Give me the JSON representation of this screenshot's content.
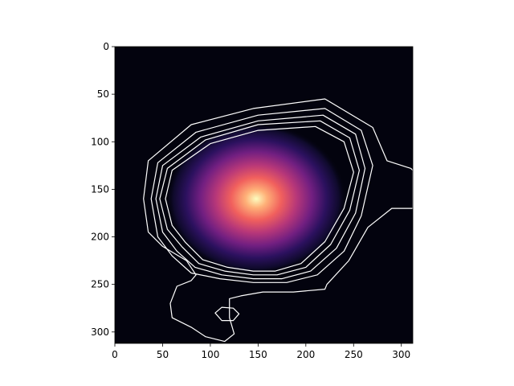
{
  "chart_data": {
    "type": "heatmap",
    "title": "",
    "xlabel": "",
    "ylabel": "",
    "xlim": [
      0,
      312
    ],
    "ylim": [
      312,
      0
    ],
    "colormap": "magma",
    "peak": {
      "x": 148,
      "y": 160,
      "value": 1.0
    },
    "x_ticks": [
      "0",
      "50",
      "100",
      "150",
      "200",
      "250",
      "300"
    ],
    "y_ticks": [
      "0",
      "50",
      "100",
      "150",
      "200",
      "250",
      "300"
    ],
    "contour_color": "#ffffff",
    "contours": [
      [
        [
          30,
          160
        ],
        [
          35,
          120
        ],
        [
          80,
          82
        ],
        [
          145,
          65
        ],
        [
          220,
          55
        ],
        [
          270,
          85
        ],
        [
          285,
          120
        ],
        [
          310,
          128
        ],
        [
          312,
          130
        ],
        [
          312,
          170
        ],
        [
          290,
          170
        ],
        [
          265,
          190
        ],
        [
          245,
          225
        ],
        [
          222,
          250
        ],
        [
          220,
          255
        ],
        [
          187,
          258
        ],
        [
          175,
          258
        ],
        [
          155,
          258
        ],
        [
          132,
          262
        ],
        [
          120,
          265
        ],
        [
          120,
          285
        ],
        [
          125,
          302
        ],
        [
          115,
          310
        ],
        [
          95,
          305
        ],
        [
          80,
          295
        ],
        [
          60,
          285
        ],
        [
          58,
          270
        ],
        [
          65,
          252
        ],
        [
          80,
          246
        ],
        [
          85,
          240
        ],
        [
          75,
          225
        ],
        [
          50,
          210
        ],
        [
          35,
          195
        ]
      ],
      [
        [
          38,
          160
        ],
        [
          45,
          122
        ],
        [
          85,
          90
        ],
        [
          150,
          72
        ],
        [
          220,
          65
        ],
        [
          258,
          88
        ],
        [
          270,
          125
        ],
        [
          258,
          178
        ],
        [
          240,
          215
        ],
        [
          212,
          240
        ],
        [
          180,
          248
        ],
        [
          145,
          248
        ],
        [
          110,
          244
        ],
        [
          80,
          238
        ],
        [
          60,
          220
        ],
        [
          45,
          200
        ]
      ],
      [
        [
          43,
          160
        ],
        [
          50,
          125
        ],
        [
          90,
          95
        ],
        [
          150,
          78
        ],
        [
          218,
          72
        ],
        [
          252,
          92
        ],
        [
          262,
          128
        ],
        [
          252,
          175
        ],
        [
          232,
          212
        ],
        [
          205,
          236
        ],
        [
          175,
          244
        ],
        [
          145,
          244
        ],
        [
          112,
          240
        ],
        [
          84,
          232
        ],
        [
          65,
          215
        ],
        [
          50,
          195
        ]
      ],
      [
        [
          47,
          160
        ],
        [
          55,
          128
        ],
        [
          95,
          98
        ],
        [
          150,
          82
        ],
        [
          215,
          78
        ],
        [
          246,
          96
        ],
        [
          256,
          130
        ],
        [
          246,
          172
        ],
        [
          226,
          208
        ],
        [
          200,
          232
        ],
        [
          170,
          240
        ],
        [
          145,
          240
        ],
        [
          115,
          236
        ],
        [
          88,
          228
        ],
        [
          70,
          210
        ],
        [
          55,
          192
        ]
      ],
      [
        [
          53,
          160
        ],
        [
          60,
          130
        ],
        [
          100,
          102
        ],
        [
          150,
          88
        ],
        [
          210,
          84
        ],
        [
          240,
          100
        ],
        [
          250,
          132
        ],
        [
          240,
          170
        ],
        [
          220,
          205
        ],
        [
          195,
          228
        ],
        [
          168,
          236
        ],
        [
          145,
          236
        ],
        [
          118,
          232
        ],
        [
          92,
          224
        ],
        [
          74,
          206
        ],
        [
          60,
          188
        ]
      ],
      [
        [
          105,
          280
        ],
        [
          112,
          274
        ],
        [
          124,
          275
        ],
        [
          130,
          281
        ],
        [
          124,
          288
        ],
        [
          112,
          288
        ]
      ]
    ]
  }
}
